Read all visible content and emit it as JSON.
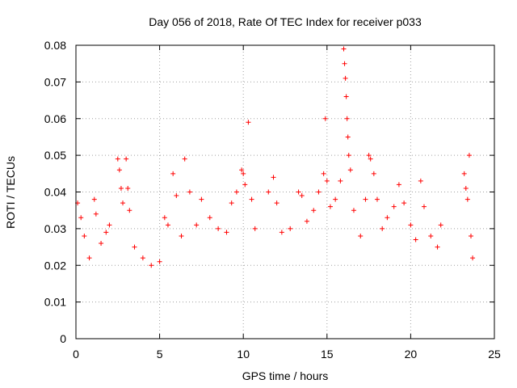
{
  "chart_data": {
    "type": "scatter",
    "title": "Day 056 of 2018, Rate Of TEC Index for receiver p033",
    "xlabel": "GPS time / hours",
    "ylabel": "ROTI / TECUs",
    "xlim": [
      0,
      25
    ],
    "ylim": [
      0,
      0.08
    ],
    "xticks": [
      0,
      5,
      10,
      15,
      20,
      25
    ],
    "xtick_labels": [
      "0",
      "5",
      "10",
      "15",
      "20",
      "25"
    ],
    "yticks": [
      0,
      0.01,
      0.02,
      0.03,
      0.04,
      0.05,
      0.06,
      0.07,
      0.08
    ],
    "ytick_labels": [
      "0",
      "0.01",
      "0.02",
      "0.03",
      "0.04",
      "0.05",
      "0.06",
      "0.07",
      "0.08"
    ],
    "grid": true,
    "marker": "+",
    "color": "#ff0000",
    "series": [
      {
        "name": "ROTI",
        "points": [
          [
            0.1,
            0.037
          ],
          [
            0.3,
            0.033
          ],
          [
            0.5,
            0.028
          ],
          [
            0.8,
            0.022
          ],
          [
            1.1,
            0.038
          ],
          [
            1.2,
            0.034
          ],
          [
            1.5,
            0.026
          ],
          [
            1.8,
            0.029
          ],
          [
            2.0,
            0.031
          ],
          [
            2.5,
            0.049
          ],
          [
            2.6,
            0.046
          ],
          [
            2.7,
            0.041
          ],
          [
            2.8,
            0.037
          ],
          [
            3.0,
            0.049
          ],
          [
            3.1,
            0.041
          ],
          [
            3.2,
            0.035
          ],
          [
            3.5,
            0.025
          ],
          [
            4.0,
            0.022
          ],
          [
            4.5,
            0.02
          ],
          [
            5.0,
            0.021
          ],
          [
            5.3,
            0.033
          ],
          [
            5.5,
            0.031
          ],
          [
            5.8,
            0.045
          ],
          [
            6.0,
            0.039
          ],
          [
            6.3,
            0.028
          ],
          [
            6.5,
            0.049
          ],
          [
            6.8,
            0.04
          ],
          [
            7.2,
            0.031
          ],
          [
            7.5,
            0.038
          ],
          [
            8.0,
            0.033
          ],
          [
            8.5,
            0.03
          ],
          [
            9.0,
            0.029
          ],
          [
            9.3,
            0.037
          ],
          [
            9.6,
            0.04
          ],
          [
            9.9,
            0.046
          ],
          [
            10.0,
            0.045
          ],
          [
            10.1,
            0.042
          ],
          [
            10.3,
            0.059
          ],
          [
            10.5,
            0.038
          ],
          [
            10.7,
            0.03
          ],
          [
            11.5,
            0.04
          ],
          [
            11.8,
            0.044
          ],
          [
            12.0,
            0.037
          ],
          [
            12.3,
            0.029
          ],
          [
            12.8,
            0.03
          ],
          [
            13.3,
            0.04
          ],
          [
            13.5,
            0.039
          ],
          [
            13.8,
            0.032
          ],
          [
            14.2,
            0.035
          ],
          [
            14.5,
            0.04
          ],
          [
            14.8,
            0.045
          ],
          [
            14.9,
            0.06
          ],
          [
            15.0,
            0.043
          ],
          [
            15.2,
            0.036
          ],
          [
            15.5,
            0.038
          ],
          [
            15.8,
            0.043
          ],
          [
            16.0,
            0.079
          ],
          [
            16.05,
            0.075
          ],
          [
            16.1,
            0.071
          ],
          [
            16.15,
            0.066
          ],
          [
            16.2,
            0.06
          ],
          [
            16.25,
            0.055
          ],
          [
            16.3,
            0.05
          ],
          [
            16.4,
            0.046
          ],
          [
            16.6,
            0.035
          ],
          [
            17.0,
            0.028
          ],
          [
            17.3,
            0.038
          ],
          [
            17.5,
            0.05
          ],
          [
            17.6,
            0.049
          ],
          [
            17.8,
            0.045
          ],
          [
            18.0,
            0.038
          ],
          [
            18.3,
            0.03
          ],
          [
            18.6,
            0.033
          ],
          [
            19.0,
            0.036
          ],
          [
            19.3,
            0.042
          ],
          [
            19.6,
            0.037
          ],
          [
            20.0,
            0.031
          ],
          [
            20.3,
            0.027
          ],
          [
            20.6,
            0.043
          ],
          [
            20.8,
            0.036
          ],
          [
            21.2,
            0.028
          ],
          [
            21.6,
            0.025
          ],
          [
            21.8,
            0.031
          ],
          [
            23.2,
            0.045
          ],
          [
            23.3,
            0.041
          ],
          [
            23.4,
            0.038
          ],
          [
            23.5,
            0.05
          ],
          [
            23.6,
            0.028
          ],
          [
            23.7,
            0.022
          ]
        ]
      }
    ]
  }
}
